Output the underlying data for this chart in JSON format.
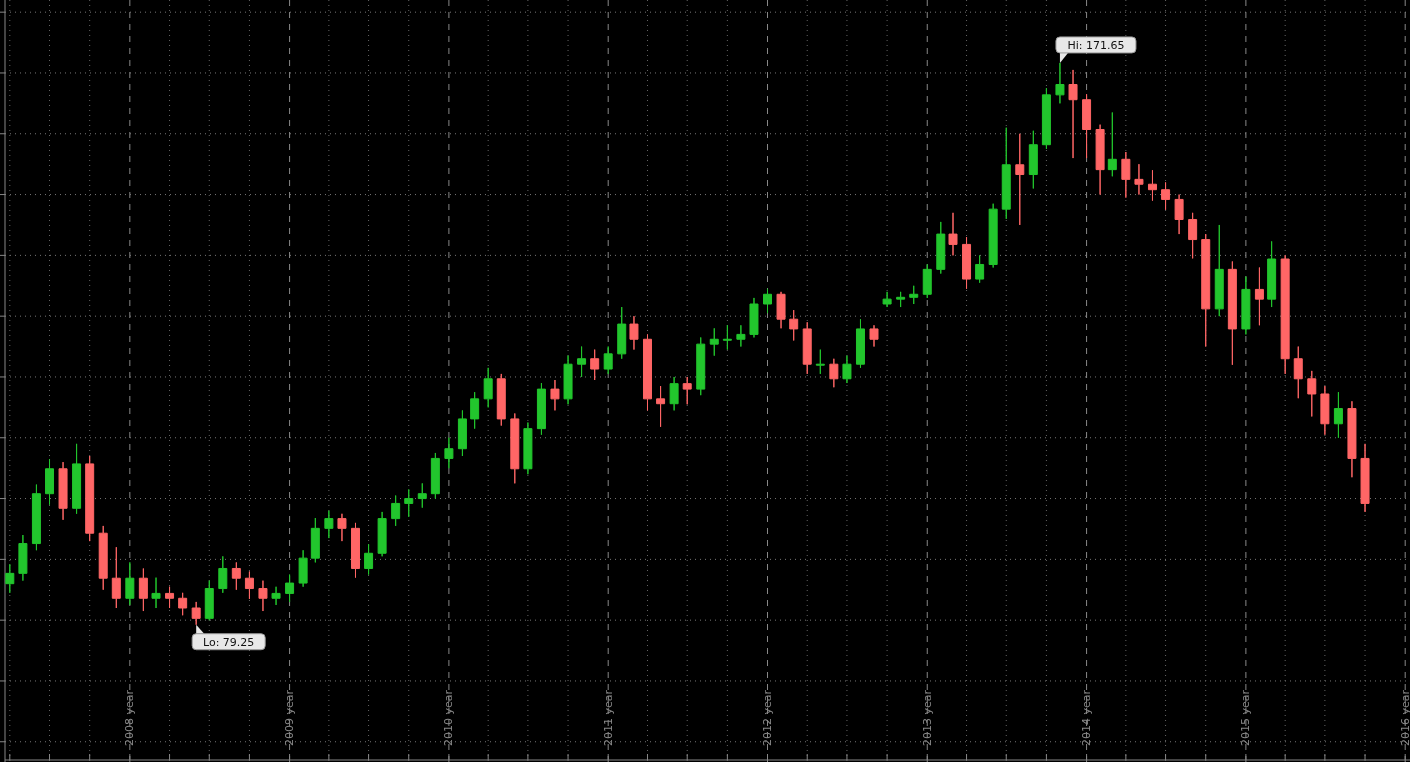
{
  "chart_data": {
    "type": "candlestick",
    "x": [
      "2007-04",
      "2007-05",
      "2007-06",
      "2007-07",
      "2007-08",
      "2007-09",
      "2007-10",
      "2007-11",
      "2007-12",
      "2008-01",
      "2008-02",
      "2008-03",
      "2008-04",
      "2008-05",
      "2008-06",
      "2008-07",
      "2008-08",
      "2008-09",
      "2008-10",
      "2008-11",
      "2008-12",
      "2009-01",
      "2009-02",
      "2009-03",
      "2009-04",
      "2009-05",
      "2009-06",
      "2009-07",
      "2009-08",
      "2009-09",
      "2009-10",
      "2009-11",
      "2009-12",
      "2010-01",
      "2010-02",
      "2010-03",
      "2010-04",
      "2010-05",
      "2010-06",
      "2010-07",
      "2010-08",
      "2010-09",
      "2010-10",
      "2010-11",
      "2010-12",
      "2011-01",
      "2011-02",
      "2011-03",
      "2011-04",
      "2011-05",
      "2011-06",
      "2011-07",
      "2011-08",
      "2011-09",
      "2011-10",
      "2011-11",
      "2011-12",
      "2012-01",
      "2012-02",
      "2012-03",
      "2012-04",
      "2012-05",
      "2012-06",
      "2012-07",
      "2012-08",
      "2012-09",
      "2012-10",
      "2012-11",
      "2012-12",
      "2013-01",
      "2013-02",
      "2013-03",
      "2013-04",
      "2013-05",
      "2013-06",
      "2013-07",
      "2013-08",
      "2013-09",
      "2013-10",
      "2013-11",
      "2013-12",
      "2014-01",
      "2014-02",
      "2014-03",
      "2014-04",
      "2014-05",
      "2014-06",
      "2014-07",
      "2014-08",
      "2014-09",
      "2014-10",
      "2014-11",
      "2014-12",
      "2015-01",
      "2015-02",
      "2015-03",
      "2015-04",
      "2015-05",
      "2015-06",
      "2015-07",
      "2015-08",
      "2015-09",
      "2015-10"
    ],
    "ohlc": [
      [
        86.0,
        89.2,
        84.5,
        87.7
      ],
      [
        87.7,
        94.0,
        86.5,
        92.6
      ],
      [
        92.6,
        102.3,
        91.5,
        100.8
      ],
      [
        100.8,
        106.5,
        99.0,
        104.9
      ],
      [
        104.9,
        106.0,
        96.5,
        98.4
      ],
      [
        98.4,
        109.0,
        97.5,
        105.7
      ],
      [
        105.7,
        107.0,
        93.0,
        94.3
      ],
      [
        94.3,
        95.5,
        85.0,
        86.9
      ],
      [
        86.9,
        92.0,
        82.0,
        83.6
      ],
      [
        83.6,
        89.5,
        82.5,
        86.9
      ],
      [
        86.9,
        88.5,
        81.5,
        83.6
      ],
      [
        83.6,
        87.0,
        82.0,
        84.4
      ],
      [
        84.4,
        85.5,
        82.0,
        83.6
      ],
      [
        83.6,
        84.5,
        80.8,
        82.0
      ],
      [
        82.0,
        83.0,
        79.25,
        80.3
      ],
      [
        80.3,
        86.5,
        80.0,
        85.2
      ],
      [
        85.2,
        90.5,
        84.5,
        88.5
      ],
      [
        88.5,
        89.5,
        85.0,
        86.9
      ],
      [
        86.9,
        88.0,
        83.5,
        85.2
      ],
      [
        85.2,
        86.5,
        81.5,
        83.6
      ],
      [
        83.6,
        85.5,
        82.5,
        84.4
      ],
      [
        84.4,
        87.5,
        83.0,
        86.1
      ],
      [
        86.1,
        91.5,
        85.5,
        90.2
      ],
      [
        90.2,
        96.8,
        89.5,
        95.1
      ],
      [
        95.1,
        98.0,
        93.5,
        96.7
      ],
      [
        96.7,
        97.5,
        93.0,
        95.1
      ],
      [
        95.1,
        96.0,
        87.0,
        88.5
      ],
      [
        88.5,
        92.5,
        87.5,
        91.0
      ],
      [
        91.0,
        97.8,
        90.5,
        96.7
      ],
      [
        96.7,
        100.5,
        95.5,
        99.2
      ],
      [
        99.2,
        101.5,
        97.0,
        100.0
      ],
      [
        100.0,
        102.5,
        98.5,
        100.8
      ],
      [
        100.8,
        107.5,
        100.0,
        106.6
      ],
      [
        106.6,
        110.0,
        105.0,
        108.2
      ],
      [
        108.2,
        114.5,
        107.0,
        113.1
      ],
      [
        113.1,
        117.5,
        111.5,
        116.4
      ],
      [
        116.4,
        121.5,
        115.0,
        119.7
      ],
      [
        119.7,
        120.5,
        112.0,
        113.1
      ],
      [
        113.1,
        114.0,
        102.5,
        104.9
      ],
      [
        104.9,
        112.5,
        104.0,
        111.5
      ],
      [
        111.5,
        119.0,
        110.5,
        118.0
      ],
      [
        118.0,
        119.5,
        114.5,
        116.4
      ],
      [
        116.4,
        123.5,
        115.5,
        122.1
      ],
      [
        122.1,
        125.0,
        120.0,
        123.0
      ],
      [
        123.0,
        124.5,
        119.5,
        121.3
      ],
      [
        121.3,
        125.0,
        120.5,
        123.8
      ],
      [
        123.8,
        131.5,
        123.0,
        128.7
      ],
      [
        128.7,
        130.0,
        124.5,
        126.2
      ],
      [
        126.2,
        127.0,
        114.5,
        116.4
      ],
      [
        116.4,
        118.5,
        111.8,
        115.6
      ],
      [
        115.6,
        120.0,
        114.5,
        118.9
      ],
      [
        118.9,
        120.0,
        115.5,
        118.0
      ],
      [
        118.0,
        126.5,
        117.0,
        125.4
      ],
      [
        125.4,
        128.0,
        123.5,
        126.2
      ],
      [
        126.2,
        128.5,
        124.5,
        126.2
      ],
      [
        126.2,
        128.5,
        125.0,
        127.0
      ],
      [
        127.0,
        133.0,
        126.5,
        132.0
      ],
      [
        132.0,
        134.5,
        130.5,
        133.6
      ],
      [
        133.6,
        134.0,
        128.0,
        129.5
      ],
      [
        129.5,
        131.0,
        126.0,
        127.9
      ],
      [
        127.9,
        129.0,
        120.5,
        122.1
      ],
      [
        122.1,
        124.5,
        120.5,
        122.1
      ],
      [
        122.1,
        123.0,
        118.3,
        119.7
      ],
      [
        119.7,
        123.5,
        119.0,
        122.1
      ],
      [
        122.1,
        129.5,
        121.5,
        127.9
      ],
      [
        127.9,
        128.5,
        125.0,
        126.2
      ],
      [
        132.0,
        134.0,
        131.5,
        132.8
      ],
      [
        132.8,
        134.0,
        131.5,
        133.1
      ],
      [
        133.1,
        135.0,
        132.0,
        133.6
      ],
      [
        133.6,
        138.5,
        133.0,
        137.7
      ],
      [
        137.7,
        145.5,
        137.0,
        143.5
      ],
      [
        143.5,
        147.0,
        140.0,
        141.8
      ],
      [
        141.8,
        143.0,
        134.5,
        136.1
      ],
      [
        136.1,
        140.0,
        135.5,
        138.5
      ],
      [
        138.5,
        148.5,
        138.0,
        147.6
      ],
      [
        147.6,
        161.0,
        146.0,
        154.9
      ],
      [
        154.9,
        160.0,
        145.0,
        153.3
      ],
      [
        153.3,
        160.5,
        151.0,
        158.2
      ],
      [
        158.2,
        167.5,
        157.5,
        166.4
      ],
      [
        166.4,
        171.65,
        165.0,
        168.1
      ],
      [
        168.1,
        170.5,
        156.0,
        165.6
      ],
      [
        165.6,
        166.5,
        156.0,
        160.7
      ],
      [
        160.7,
        161.5,
        150.0,
        154.1
      ],
      [
        154.1,
        163.5,
        153.0,
        155.8
      ],
      [
        155.8,
        157.0,
        149.5,
        152.5
      ],
      [
        152.5,
        155.0,
        150.0,
        151.7
      ],
      [
        151.7,
        154.0,
        149.0,
        150.8
      ],
      [
        150.8,
        152.0,
        147.5,
        149.2
      ],
      [
        149.2,
        150.0,
        143.5,
        145.9
      ],
      [
        145.9,
        147.0,
        139.5,
        142.6
      ],
      [
        142.6,
        143.5,
        125.0,
        131.2
      ],
      [
        131.2,
        145.0,
        130.0,
        137.7
      ],
      [
        137.7,
        139.0,
        122.0,
        127.9
      ],
      [
        127.9,
        136.5,
        127.0,
        134.4
      ],
      [
        134.4,
        138.0,
        128.5,
        132.8
      ],
      [
        132.8,
        142.3,
        131.5,
        139.4
      ],
      [
        139.4,
        140.0,
        120.5,
        123.0
      ],
      [
        123.0,
        125.0,
        116.5,
        119.7
      ],
      [
        119.7,
        121.0,
        113.5,
        117.2
      ],
      [
        117.2,
        118.5,
        110.5,
        112.3
      ],
      [
        112.3,
        117.5,
        110.0,
        114.8
      ],
      [
        114.8,
        116.0,
        103.5,
        106.6
      ],
      [
        106.6,
        109.0,
        97.8,
        99.2
      ]
    ],
    "colors": [
      "#22c62d",
      "#22c62d",
      "#22c62d",
      "#22c62d",
      "#ff6666",
      "#22c62d",
      "#ff6666",
      "#ff6666",
      "#ff6666",
      "#22c62d",
      "#ff6666",
      "#22c62d",
      "#ff6666",
      "#ff6666",
      "#ff6666",
      "#22c62d",
      "#22c62d",
      "#ff6666",
      "#ff6666",
      "#ff6666",
      "#22c62d",
      "#22c62d",
      "#22c62d",
      "#22c62d",
      "#22c62d",
      "#ff6666",
      "#ff6666",
      "#22c62d",
      "#22c62d",
      "#22c62d",
      "#22c62d",
      "#22c62d",
      "#22c62d",
      "#22c62d",
      "#22c62d",
      "#22c62d",
      "#22c62d",
      "#ff6666",
      "#ff6666",
      "#22c62d",
      "#22c62d",
      "#ff6666",
      "#22c62d",
      "#22c62d",
      "#ff6666",
      "#22c62d",
      "#22c62d",
      "#ff6666",
      "#ff6666",
      "#ff6666",
      "#22c62d",
      "#ff6666",
      "#22c62d",
      "#22c62d",
      "#22c62d",
      "#22c62d",
      "#22c62d",
      "#22c62d",
      "#ff6666",
      "#ff6666",
      "#ff6666",
      "#22c62d",
      "#ff6666",
      "#22c62d",
      "#22c62d",
      "#ff6666",
      "#22c62d",
      "#22c62d",
      "#22c62d",
      "#22c62d",
      "#22c62d",
      "#ff6666",
      "#ff6666",
      "#22c62d",
      "#22c62d",
      "#22c62d",
      "#ff6666",
      "#22c62d",
      "#22c62d",
      "#22c62d",
      "#ff6666",
      "#ff6666",
      "#ff6666",
      "#22c62d",
      "#ff6666",
      "#ff6666",
      "#ff6666",
      "#ff6666",
      "#ff6666",
      "#ff6666",
      "#ff6666",
      "#22c62d",
      "#ff6666",
      "#22c62d",
      "#ff6666",
      "#22c62d",
      "#ff6666",
      "#ff6666",
      "#ff6666",
      "#ff6666",
      "#22c62d",
      "#ff6666",
      "#ff6666"
    ],
    "xlim": [
      "2007-03-21",
      "2016-01-12"
    ],
    "xticks": [
      {
        "value": "2007-04-01",
        "label": null
      },
      {
        "value": "2007-07-01",
        "label": null
      },
      {
        "value": "2007-10-01",
        "label": null
      },
      {
        "value": "2008-01-01",
        "label": "2008 year"
      },
      {
        "value": "2008-04-01",
        "label": null
      },
      {
        "value": "2008-07-01",
        "label": null
      },
      {
        "value": "2008-10-01",
        "label": null
      },
      {
        "value": "2009-01-01",
        "label": "2009 year"
      },
      {
        "value": "2009-04-01",
        "label": null
      },
      {
        "value": "2009-07-01",
        "label": null
      },
      {
        "value": "2009-10-01",
        "label": null
      },
      {
        "value": "2010-01-01",
        "label": "2010 year"
      },
      {
        "value": "2010-04-01",
        "label": null
      },
      {
        "value": "2010-07-01",
        "label": null
      },
      {
        "value": "2010-10-01",
        "label": null
      },
      {
        "value": "2011-01-01",
        "label": "2011 year"
      },
      {
        "value": "2011-04-01",
        "label": null
      },
      {
        "value": "2011-07-01",
        "label": null
      },
      {
        "value": "2011-10-01",
        "label": null
      },
      {
        "value": "2012-01-01",
        "label": "2012 year"
      },
      {
        "value": "2012-04-01",
        "label": null
      },
      {
        "value": "2012-07-01",
        "label": null
      },
      {
        "value": "2012-10-01",
        "label": null
      },
      {
        "value": "2013-01-01",
        "label": "2013 year"
      },
      {
        "value": "2013-04-01",
        "label": null
      },
      {
        "value": "2013-07-01",
        "label": null
      },
      {
        "value": "2013-10-01",
        "label": null
      },
      {
        "value": "2014-01-01",
        "label": "2014 year"
      },
      {
        "value": "2014-04-01",
        "label": null
      },
      {
        "value": "2014-07-01",
        "label": null
      },
      {
        "value": "2014-10-01",
        "label": null
      },
      {
        "value": "2015-01-01",
        "label": "2015 year"
      },
      {
        "value": "2015-04-01",
        "label": null
      },
      {
        "value": "2015-07-01",
        "label": null
      },
      {
        "value": "2015-10-01",
        "label": null
      },
      {
        "value": "2016-01-01",
        "label": "2016 year"
      }
    ],
    "ylim": [
      57,
      182
    ],
    "yticks": [
      {
        "value": 60,
        "label": null
      },
      {
        "value": 70,
        "label": null
      },
      {
        "value": 80,
        "label": null
      },
      {
        "value": 90,
        "label": null
      },
      {
        "value": 100,
        "label": null
      },
      {
        "value": 110,
        "label": null
      },
      {
        "value": 120,
        "label": null
      },
      {
        "value": 130,
        "label": null
      },
      {
        "value": 140,
        "label": null
      },
      {
        "value": 150,
        "label": null
      },
      {
        "value": 160,
        "label": null
      },
      {
        "value": 170,
        "label": null
      },
      {
        "value": 180,
        "label": null
      }
    ],
    "grid": true,
    "tick_labels": "x",
    "annotations": [
      {
        "text": "Hi: 171.65",
        "x": "2013-11",
        "y": 171.65
      },
      {
        "text": "Lo: 79.25",
        "x": "2008-06",
        "y": 79.25
      }
    ]
  }
}
